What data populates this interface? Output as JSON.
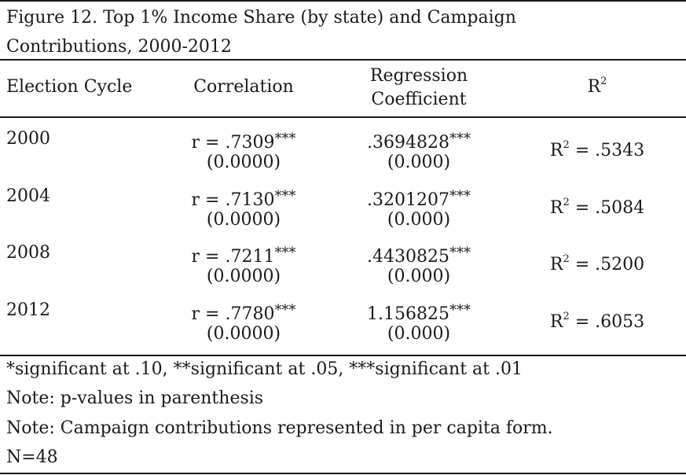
{
  "caption": {
    "line1": "Figure 12. Top 1% Income Share (by state) and Campaign",
    "line2": "Contributions, 2000-2012"
  },
  "headers": {
    "election_cycle": "Election Cycle",
    "correlation": "Correlation",
    "regression_line1": "Regression",
    "regression_line2": "Coefficient",
    "r2_base": "R",
    "r2_sup": "2"
  },
  "rows": [
    {
      "year": "2000",
      "corr": "r = .7309",
      "corr_stars": "***",
      "corr_p": "(0.0000)",
      "reg": ".3694828",
      "reg_stars": "***",
      "reg_p": "(0.000)",
      "r2_value": " = .5343"
    },
    {
      "year": "2004",
      "corr": "r = .7130",
      "corr_stars": "***",
      "corr_p": "(0.0000)",
      "reg": ".3201207",
      "reg_stars": "***",
      "reg_p": "(0.000)",
      "r2_value": " = .5084"
    },
    {
      "year": "2008",
      "corr": "r = .7211",
      "corr_stars": "***",
      "corr_p": "(0.0000)",
      "reg": ".4430825",
      "reg_stars": "***",
      "reg_p": "(0.000)",
      "r2_value": " = .5200"
    },
    {
      "year": "2012",
      "corr": "r = .7780",
      "corr_stars": "***",
      "corr_p": "(0.0000)",
      "reg": "1.156825",
      "reg_stars": "***",
      "reg_p": "(0.000)",
      "r2_value": " = .6053"
    }
  ],
  "notes": [
    "*significant at .10, **significant at .05, ***significant at .01",
    "Note: p-values in parenthesis",
    "Note: Campaign contributions represented in per capita form.",
    "N=48"
  ]
}
